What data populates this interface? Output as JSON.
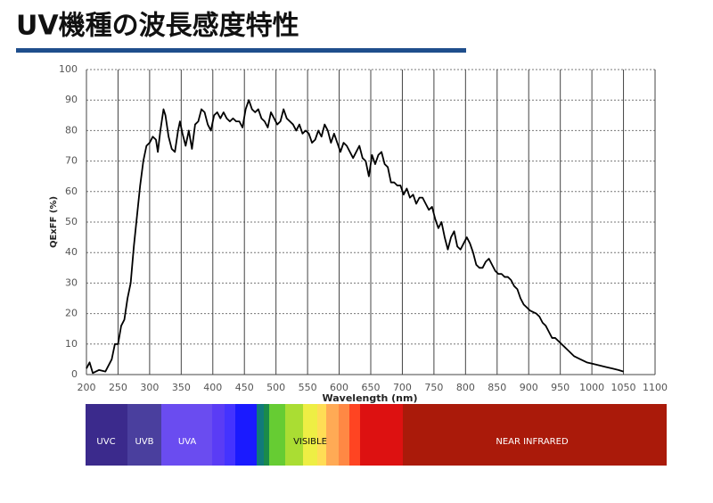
{
  "chart_data": {
    "type": "line",
    "title": "UV機種の波長感度特性",
    "xlabel": "Wavelength (nm)",
    "ylabel": "QExFF (%)",
    "color": "#000000",
    "grid": true,
    "xlim": [
      200,
      1100
    ],
    "ylim": [
      0,
      100
    ],
    "xticks": [
      200,
      250,
      300,
      350,
      400,
      450,
      500,
      550,
      600,
      650,
      700,
      750,
      800,
      850,
      900,
      950,
      1000,
      1050,
      1100
    ],
    "yticks": [
      0,
      10,
      20,
      30,
      40,
      50,
      60,
      70,
      80,
      90,
      100
    ],
    "x": [
      200,
      205,
      210,
      220,
      230,
      240,
      245,
      250,
      255,
      260,
      265,
      270,
      275,
      280,
      285,
      290,
      295,
      300,
      305,
      310,
      313,
      317,
      322,
      325,
      330,
      335,
      340,
      345,
      348,
      352,
      357,
      362,
      367,
      372,
      377,
      382,
      387,
      392,
      397,
      402,
      407,
      412,
      417,
      422,
      427,
      432,
      437,
      442,
      447,
      452,
      457,
      462,
      467,
      472,
      477,
      482,
      487,
      492,
      497,
      502,
      507,
      512,
      517,
      522,
      527,
      532,
      537,
      542,
      547,
      552,
      557,
      562,
      567,
      572,
      577,
      582,
      587,
      592,
      597,
      602,
      607,
      612,
      617,
      622,
      627,
      632,
      637,
      642,
      647,
      652,
      657,
      662,
      667,
      672,
      677,
      682,
      687,
      692,
      697,
      702,
      707,
      712,
      717,
      722,
      727,
      732,
      737,
      742,
      747,
      752,
      757,
      762,
      767,
      772,
      777,
      782,
      787,
      792,
      797,
      802,
      807,
      812,
      817,
      822,
      827,
      832,
      837,
      842,
      847,
      852,
      857,
      862,
      867,
      872,
      877,
      882,
      887,
      892,
      897,
      902,
      907,
      912,
      917,
      922,
      927,
      932,
      937,
      942,
      947,
      952,
      962,
      972,
      982,
      992,
      1002,
      1012,
      1022,
      1032,
      1042,
      1050
    ],
    "values": [
      2,
      4,
      0.5,
      1.5,
      1,
      5,
      10,
      10,
      16,
      18,
      25,
      30,
      42,
      52,
      62,
      70,
      75,
      76,
      78,
      77,
      73,
      80,
      87,
      85,
      78,
      74,
      73,
      80,
      83,
      79,
      75,
      80,
      74,
      82,
      83,
      87,
      86,
      82,
      80,
      85,
      86,
      84,
      86,
      84,
      83,
      84,
      83,
      83,
      81,
      87,
      90,
      87,
      86,
      87,
      84,
      83,
      81,
      86,
      84,
      82,
      83,
      87,
      84,
      83,
      82,
      80,
      82,
      79,
      80,
      79,
      76,
      77,
      80,
      78,
      82,
      80,
      76,
      79,
      76,
      73,
      76,
      75,
      73,
      71,
      73,
      75,
      71,
      70,
      65,
      72,
      69,
      72,
      73,
      69,
      68,
      63,
      63,
      62,
      62,
      59,
      61,
      58,
      59,
      56,
      58,
      58,
      56,
      54,
      55,
      51,
      48,
      50,
      45,
      41,
      45,
      47,
      42,
      41,
      43,
      45,
      43,
      40,
      36,
      35,
      35,
      37,
      38,
      36,
      34,
      33,
      33,
      32,
      32,
      31,
      29,
      28,
      25,
      23,
      22,
      21,
      20.5,
      20,
      19,
      17,
      16,
      14,
      12,
      12,
      11,
      10,
      8,
      6,
      5,
      4,
      3.5,
      3,
      2.5,
      2,
      1.5,
      1
    ]
  },
  "spectrum": [
    "UVC",
    "UVB",
    "UVA",
    "VISIBLE",
    "NEAR INFRARED"
  ]
}
